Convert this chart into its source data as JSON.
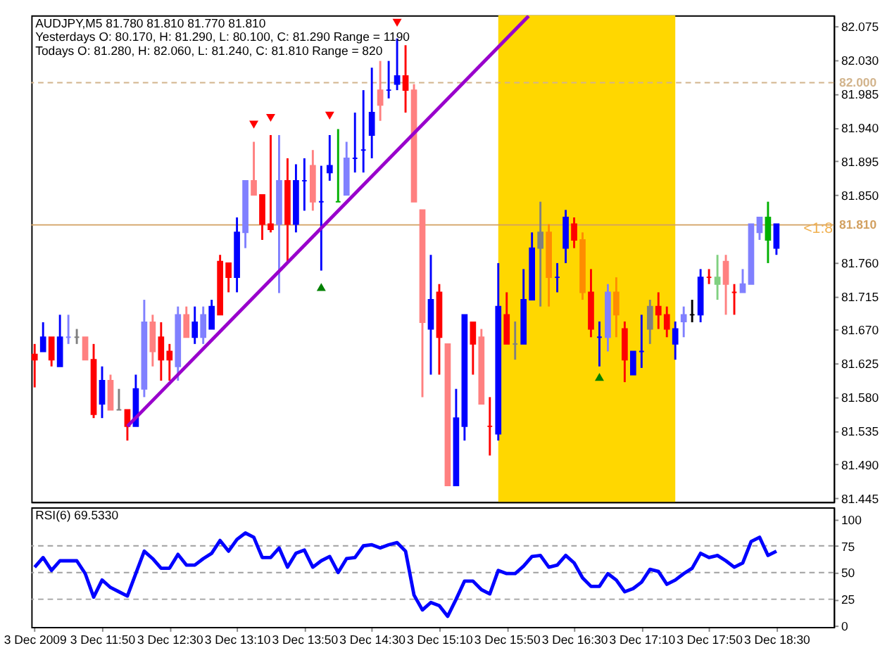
{
  "chart_data": [
    {
      "type": "candlestick",
      "title": "AUDJPY,M5  81.780 81.810 81.770 81.810",
      "annotations": [
        "Yesterdays O: 80.170, H: 81.290, L: 80.100, C: 81.290 Range = 1190",
        "Todays O: 81.280, H: 82.060, L: 81.240, C: 81.810 Range = 820",
        {
          "text": "<1:8",
          "x": "2009-12-03T18:46",
          "y": 81.805
        }
      ],
      "x": [
        "2009-12-03T11:10",
        "2009-12-03T11:15",
        "2009-12-03T11:20",
        "2009-12-03T11:25",
        "2009-12-03T11:30",
        "2009-12-03T11:35",
        "2009-12-03T11:40",
        "2009-12-03T11:45",
        "2009-12-03T11:50",
        "2009-12-03T11:55",
        "2009-12-03T12:00",
        "2009-12-03T12:05",
        "2009-12-03T12:10",
        "2009-12-03T12:15",
        "2009-12-03T12:20",
        "2009-12-03T12:25",
        "2009-12-03T12:30",
        "2009-12-03T12:35",
        "2009-12-03T12:40",
        "2009-12-03T12:45",
        "2009-12-03T12:50",
        "2009-12-03T12:55",
        "2009-12-03T13:00",
        "2009-12-03T13:05",
        "2009-12-03T13:10",
        "2009-12-03T13:15",
        "2009-12-03T13:20",
        "2009-12-03T13:25",
        "2009-12-03T13:30",
        "2009-12-03T13:35",
        "2009-12-03T13:40",
        "2009-12-03T13:45",
        "2009-12-03T13:50",
        "2009-12-03T13:55",
        "2009-12-03T14:00",
        "2009-12-03T14:05",
        "2009-12-03T14:10",
        "2009-12-03T14:15",
        "2009-12-03T14:20",
        "2009-12-03T14:25",
        "2009-12-03T14:30",
        "2009-12-03T14:35",
        "2009-12-03T14:40",
        "2009-12-03T14:45",
        "2009-12-03T14:50",
        "2009-12-03T14:55",
        "2009-12-03T15:00",
        "2009-12-03T15:05",
        "2009-12-03T15:10",
        "2009-12-03T15:15",
        "2009-12-03T15:20",
        "2009-12-03T15:25",
        "2009-12-03T15:30",
        "2009-12-03T15:35",
        "2009-12-03T15:40",
        "2009-12-03T15:45",
        "2009-12-03T15:50",
        "2009-12-03T15:55",
        "2009-12-03T16:00",
        "2009-12-03T16:05",
        "2009-12-03T16:10",
        "2009-12-03T16:15",
        "2009-12-03T16:20",
        "2009-12-03T16:25",
        "2009-12-03T16:30",
        "2009-12-03T16:35",
        "2009-12-03T16:40",
        "2009-12-03T16:45",
        "2009-12-03T16:50",
        "2009-12-03T16:55",
        "2009-12-03T17:00",
        "2009-12-03T17:05",
        "2009-12-03T17:10",
        "2009-12-03T17:15",
        "2009-12-03T17:20",
        "2009-12-03T17:25",
        "2009-12-03T17:30",
        "2009-12-03T17:35",
        "2009-12-03T17:40",
        "2009-12-03T17:45",
        "2009-12-03T17:50",
        "2009-12-03T17:55",
        "2009-12-03T18:00",
        "2009-12-03T18:05",
        "2009-12-03T18:10",
        "2009-12-03T18:15",
        "2009-12-03T18:20",
        "2009-12-03T18:25",
        "2009-12-03T18:30"
      ],
      "ohlc": [
        [
          81.637,
          81.651,
          81.593,
          81.63
        ],
        [
          81.641,
          81.68,
          81.641,
          81.66
        ],
        [
          81.66,
          81.66,
          81.621,
          81.63
        ],
        [
          81.621,
          81.69,
          81.621,
          81.66
        ],
        [
          81.66,
          81.69,
          81.651,
          81.66
        ],
        [
          81.66,
          81.671,
          81.651,
          81.66
        ],
        [
          81.66,
          81.66,
          81.63,
          81.63
        ],
        [
          81.63,
          81.651,
          81.552,
          81.557
        ],
        [
          81.571,
          81.621,
          81.552,
          81.602
        ],
        [
          81.602,
          81.61,
          81.563,
          81.563
        ],
        [
          81.563,
          81.591,
          81.563,
          81.563
        ],
        [
          81.563,
          81.563,
          81.522,
          81.541
        ],
        [
          81.541,
          81.61,
          81.541,
          81.591
        ],
        [
          81.591,
          81.71,
          81.58,
          81.68
        ],
        [
          81.68,
          81.69,
          81.621,
          81.641
        ],
        [
          81.66,
          81.68,
          81.602,
          81.63
        ],
        [
          81.641,
          81.651,
          81.602,
          81.63
        ],
        [
          81.621,
          81.701,
          81.602,
          81.69
        ],
        [
          81.69,
          81.701,
          81.66,
          81.66
        ],
        [
          81.66,
          81.701,
          81.651,
          81.68
        ],
        [
          81.66,
          81.701,
          81.651,
          81.69
        ],
        [
          81.671,
          81.71,
          81.671,
          81.701
        ],
        [
          81.761,
          81.77,
          81.69,
          81.69
        ],
        [
          81.759,
          81.759,
          81.72,
          81.74
        ],
        [
          81.74,
          81.82,
          81.72,
          81.8
        ],
        [
          81.8,
          81.869,
          81.779,
          81.869
        ],
        [
          81.869,
          81.921,
          81.85,
          81.85
        ],
        [
          81.85,
          81.85,
          81.79,
          81.811
        ],
        [
          81.811,
          81.93,
          81.8,
          81.804
        ],
        [
          81.811,
          81.93,
          81.719,
          81.869
        ],
        [
          81.869,
          81.899,
          81.761,
          81.811
        ],
        [
          81.811,
          81.891,
          81.8,
          81.869
        ],
        [
          81.869,
          81.899,
          81.829,
          81.869
        ],
        [
          81.889,
          81.91,
          81.829,
          81.841
        ],
        [
          81.841,
          81.889,
          81.749,
          81.841
        ],
        [
          81.88,
          81.93,
          81.869,
          81.889
        ],
        [
          81.841,
          81.938,
          81.841,
          81.841
        ],
        [
          81.85,
          81.921,
          81.85,
          81.899
        ],
        [
          81.899,
          81.96,
          81.88,
          81.899
        ],
        [
          81.91,
          81.99,
          81.88,
          81.91
        ],
        [
          81.93,
          82.02,
          81.899,
          81.96
        ],
        [
          81.99,
          82.029,
          81.949,
          81.97
        ],
        [
          81.99,
          82.029,
          81.979,
          81.99
        ],
        [
          81.998,
          82.059,
          81.99,
          82.009
        ],
        [
          82.009,
          82.05,
          81.96,
          81.99
        ],
        [
          81.99,
          81.998,
          81.841,
          81.841
        ],
        [
          81.83,
          81.83,
          81.58,
          81.68
        ],
        [
          81.671,
          81.77,
          81.61,
          81.71
        ],
        [
          81.72,
          81.731,
          81.61,
          81.66
        ],
        [
          81.651,
          81.651,
          81.462,
          81.462
        ],
        [
          81.462,
          81.591,
          81.462,
          81.552
        ],
        [
          81.541,
          81.69,
          81.522,
          81.69
        ],
        [
          81.68,
          81.68,
          81.61,
          81.651
        ],
        [
          81.66,
          81.671,
          81.571,
          81.571
        ],
        [
          81.541,
          81.58,
          81.502,
          81.541
        ],
        [
          81.531,
          81.759,
          81.522,
          81.701
        ],
        [
          81.69,
          81.72,
          81.651,
          81.651
        ],
        [
          81.651,
          81.681,
          81.63,
          81.651
        ],
        [
          81.651,
          81.751,
          81.651,
          81.71
        ],
        [
          81.71,
          81.8,
          81.71,
          81.779
        ],
        [
          81.779,
          81.841,
          81.701,
          81.8
        ],
        [
          81.8,
          81.811,
          81.701,
          81.74
        ],
        [
          81.74,
          81.759,
          81.72,
          81.74
        ],
        [
          81.779,
          81.83,
          81.759,
          81.82
        ],
        [
          81.811,
          81.82,
          81.779,
          81.79
        ],
        [
          81.79,
          81.8,
          81.71,
          81.72
        ],
        [
          81.72,
          81.751,
          81.66,
          81.671
        ],
        [
          81.66,
          81.681,
          81.621,
          81.66
        ],
        [
          81.66,
          81.731,
          81.641,
          81.72
        ],
        [
          81.72,
          81.74,
          81.66,
          81.69
        ],
        [
          81.671,
          81.681,
          81.6,
          81.63
        ],
        [
          81.61,
          81.641,
          81.61,
          81.641
        ],
        [
          81.641,
          81.69,
          81.619,
          81.641
        ],
        [
          81.671,
          81.71,
          81.651,
          81.701
        ],
        [
          81.701,
          81.72,
          81.671,
          81.69
        ],
        [
          81.69,
          81.701,
          81.66,
          81.671
        ],
        [
          81.651,
          81.681,
          81.63,
          81.671
        ],
        [
          81.681,
          81.701,
          81.66,
          81.69
        ],
        [
          81.69,
          81.71,
          81.68,
          81.69
        ],
        [
          81.69,
          81.751,
          81.68,
          81.74
        ],
        [
          81.74,
          81.751,
          81.731,
          81.74
        ],
        [
          81.74,
          81.77,
          81.71,
          81.731
        ],
        [
          81.761,
          81.77,
          81.69,
          81.731
        ],
        [
          81.72,
          81.731,
          81.69,
          81.72
        ],
        [
          81.72,
          81.751,
          81.72,
          81.731
        ],
        [
          81.731,
          81.811,
          81.731,
          81.811
        ],
        [
          81.8,
          81.82,
          81.79,
          81.82
        ],
        [
          81.82,
          81.841,
          81.759,
          81.79
        ],
        [
          81.779,
          81.811,
          81.77,
          81.811
        ]
      ],
      "colors": [
        "#ff0000",
        "#0000ff",
        "#ff0000",
        "#0000ff",
        "#8080ff",
        "#808080",
        "#ff8080",
        "#ff0000",
        "#0000ff",
        "#ff8080",
        "#808080",
        "#ff0000",
        "#0000ff",
        "#8080ff",
        "#ff8080",
        "#ff0000",
        "#ff0000",
        "#8080ff",
        "#ff8080",
        "#0000ff",
        "#8080ff",
        "#0000ff",
        "#ff0000",
        "#ff0000",
        "#0000ff",
        "#8080ff",
        "#ff8080",
        "#ff0000",
        "#ff0000",
        "#8080ff",
        "#ff0000",
        "#0000ff",
        "#0000ff",
        "#ff8080",
        "#0000ff",
        "#0000ff",
        "#00b000",
        "#8080ff",
        "#0000ff",
        "#0000ff",
        "#0000ff",
        "#ff8080",
        "#0000ff",
        "#0000ff",
        "#ff0000",
        "#ff8080",
        "#ff8080",
        "#0000ff",
        "#ff0000",
        "#ff8080",
        "#0000ff",
        "#0000ff",
        "#ff0000",
        "#ff8080",
        "#ff0000",
        "#0000ff",
        "#ff0000",
        "#808080",
        "#0000ff",
        "#0000ff",
        "#808080",
        "#ff8c00",
        "#0000ff",
        "#0000ff",
        "#ff0000",
        "#ff8c00",
        "#ff0000",
        "#0000ff",
        "#8080ff",
        "#ff8c00",
        "#ff0000",
        "#0000ff",
        "#0000ff",
        "#808080",
        "#ff0000",
        "#ff0000",
        "#0000ff",
        "#8080ff",
        "#000000",
        "#0000ff",
        "#ff0000",
        "#80d080",
        "#ff8080",
        "#ff0000",
        "#8080ff",
        "#8080ff",
        "#8080ff",
        "#00b000",
        "#0000ff"
      ],
      "series": [
        {
          "type": "line",
          "color": "#9900cc",
          "x": [
            "2009-12-03T12:05",
            "2009-12-03T16:03"
          ],
          "values": [
            81.541,
            82.089
          ]
        },
        {
          "type": "scatter",
          "marker": "triangle-down",
          "color": "#ff0000",
          "x": [
            "2009-12-03T13:20",
            "2009-12-03T13:30",
            "2009-12-03T14:05",
            "2009-12-03T14:45"
          ],
          "values": [
            81.944,
            81.953,
            81.956,
            82.08
          ]
        },
        {
          "type": "scatter",
          "marker": "triangle-up",
          "color": "#008000",
          "x": [
            "2009-12-03T14:00",
            "2009-12-03T16:45"
          ],
          "values": [
            81.727,
            81.607
          ]
        }
      ],
      "xlim": [
        "2009-12-03T11:08",
        "2009-12-03T19:04"
      ],
      "ylim": [
        81.44,
        82.09
      ],
      "yticks": [
        {
          "value": 82.075,
          "label": "82.075"
        },
        {
          "value": 82.03,
          "label": "82.030"
        },
        {
          "value": 81.985,
          "label": "81.985"
        },
        {
          "value": 81.94,
          "label": "81.940"
        },
        {
          "value": 81.895,
          "label": "81.895"
        },
        {
          "value": 81.85,
          "label": "81.850"
        },
        {
          "value": 81.76,
          "label": "81.760"
        },
        {
          "value": 81.715,
          "label": "81.715"
        },
        {
          "value": 81.67,
          "label": "81.670"
        },
        {
          "value": 81.625,
          "label": "81.625"
        },
        {
          "value": 81.58,
          "label": "81.580"
        },
        {
          "value": 81.535,
          "label": "81.535"
        },
        {
          "value": 81.49,
          "label": "81.490"
        },
        {
          "value": 81.445,
          "label": "81.445"
        }
      ],
      "ref_lines": [
        {
          "axis": "y",
          "value": 82.0,
          "label": "82.000",
          "color": "#d2b48c",
          "line_style": "dashed"
        },
        {
          "axis": "y",
          "value": 81.81,
          "label": "81.810",
          "color": "#d2a060",
          "line_style": "solid"
        }
      ],
      "bands": [
        {
          "axis": "x",
          "from": "2009-12-03T15:45",
          "to": "2009-12-03T17:30",
          "color": "#ffd700"
        }
      ],
      "tick_labels": "y",
      "grid": false
    },
    {
      "type": "line",
      "title": "RSI(6) 69.5330",
      "x": [
        "2009-12-03T11:10",
        "2009-12-03T11:15",
        "2009-12-03T11:20",
        "2009-12-03T11:25",
        "2009-12-03T11:30",
        "2009-12-03T11:35",
        "2009-12-03T11:40",
        "2009-12-03T11:45",
        "2009-12-03T11:50",
        "2009-12-03T11:55",
        "2009-12-03T12:00",
        "2009-12-03T12:05",
        "2009-12-03T12:10",
        "2009-12-03T12:15",
        "2009-12-03T12:20",
        "2009-12-03T12:25",
        "2009-12-03T12:30",
        "2009-12-03T12:35",
        "2009-12-03T12:40",
        "2009-12-03T12:45",
        "2009-12-03T12:50",
        "2009-12-03T12:55",
        "2009-12-03T13:00",
        "2009-12-03T13:05",
        "2009-12-03T13:10",
        "2009-12-03T13:15",
        "2009-12-03T13:20",
        "2009-12-03T13:25",
        "2009-12-03T13:30",
        "2009-12-03T13:35",
        "2009-12-03T13:40",
        "2009-12-03T13:45",
        "2009-12-03T13:50",
        "2009-12-03T13:55",
        "2009-12-03T14:00",
        "2009-12-03T14:05",
        "2009-12-03T14:10",
        "2009-12-03T14:15",
        "2009-12-03T14:20",
        "2009-12-03T14:25",
        "2009-12-03T14:30",
        "2009-12-03T14:35",
        "2009-12-03T14:40",
        "2009-12-03T14:45",
        "2009-12-03T14:50",
        "2009-12-03T14:55",
        "2009-12-03T15:00",
        "2009-12-03T15:05",
        "2009-12-03T15:10",
        "2009-12-03T15:15",
        "2009-12-03T15:20",
        "2009-12-03T15:25",
        "2009-12-03T15:30",
        "2009-12-03T15:35",
        "2009-12-03T15:40",
        "2009-12-03T15:45",
        "2009-12-03T15:50",
        "2009-12-03T15:55",
        "2009-12-03T16:00",
        "2009-12-03T16:05",
        "2009-12-03T16:10",
        "2009-12-03T16:15",
        "2009-12-03T16:20",
        "2009-12-03T16:25",
        "2009-12-03T16:30",
        "2009-12-03T16:35",
        "2009-12-03T16:40",
        "2009-12-03T16:45",
        "2009-12-03T16:50",
        "2009-12-03T16:55",
        "2009-12-03T17:00",
        "2009-12-03T17:05",
        "2009-12-03T17:10",
        "2009-12-03T17:15",
        "2009-12-03T17:20",
        "2009-12-03T17:25",
        "2009-12-03T17:30",
        "2009-12-03T17:35",
        "2009-12-03T17:40",
        "2009-12-03T17:45",
        "2009-12-03T17:50",
        "2009-12-03T17:55",
        "2009-12-03T18:00",
        "2009-12-03T18:05",
        "2009-12-03T18:10",
        "2009-12-03T18:15",
        "2009-12-03T18:20",
        "2009-12-03T18:25",
        "2009-12-03T18:30"
      ],
      "series": [
        {
          "color": "#0000ff",
          "values": [
            55,
            64,
            52,
            61,
            61,
            61,
            49,
            27,
            43,
            36,
            32,
            28,
            49,
            70,
            63,
            54,
            54,
            67,
            57,
            57,
            63,
            68,
            80,
            70,
            81,
            87,
            83,
            64,
            64,
            73,
            55,
            68,
            71,
            55,
            61,
            65,
            50,
            63,
            64,
            75,
            76,
            73,
            76,
            78,
            70,
            29,
            15,
            22,
            19,
            9,
            25,
            42,
            42,
            34,
            30,
            52,
            49,
            49,
            56,
            65,
            66,
            55,
            57,
            66,
            59,
            45,
            37,
            37,
            49,
            43,
            32,
            35,
            41,
            53,
            51,
            39,
            43,
            49,
            54,
            68,
            64,
            66,
            61,
            55,
            59,
            79,
            83,
            66,
            70
          ]
        }
      ],
      "xlim": [
        "2009-12-03T11:08",
        "2009-12-03T19:04"
      ],
      "xticks": [
        {
          "value": "2009-12-03T11:10",
          "label": "3 Dec 2009"
        },
        {
          "value": "2009-12-03T11:50",
          "label": "3 Dec 11:50"
        },
        {
          "value": "2009-12-03T12:30",
          "label": "3 Dec 12:30"
        },
        {
          "value": "2009-12-03T13:10",
          "label": "3 Dec 13:10"
        },
        {
          "value": "2009-12-03T13:50",
          "label": "3 Dec 13:50"
        },
        {
          "value": "2009-12-03T14:30",
          "label": "3 Dec 14:30"
        },
        {
          "value": "2009-12-03T15:10",
          "label": "3 Dec 15:10"
        },
        {
          "value": "2009-12-03T15:50",
          "label": "3 Dec 15:50"
        },
        {
          "value": "2009-12-03T16:30",
          "label": "3 Dec 16:30"
        },
        {
          "value": "2009-12-03T17:10",
          "label": "3 Dec 17:10"
        },
        {
          "value": "2009-12-03T17:50",
          "label": "3 Dec 17:50"
        },
        {
          "value": "2009-12-03T18:30",
          "label": "3 Dec 18:30"
        }
      ],
      "ylim": [
        -1,
        111
      ],
      "yticks": [
        0,
        25,
        50,
        75,
        100
      ],
      "ref_lines": [
        {
          "axis": "y",
          "value": 25,
          "color": "#a0a0a0",
          "line_style": "dashed"
        },
        {
          "axis": "y",
          "value": 50,
          "color": "#a0a0a0",
          "line_style": "dashed"
        },
        {
          "axis": "y",
          "value": 75,
          "color": "#a0a0a0",
          "line_style": "dashed"
        }
      ],
      "grid": false
    }
  ]
}
